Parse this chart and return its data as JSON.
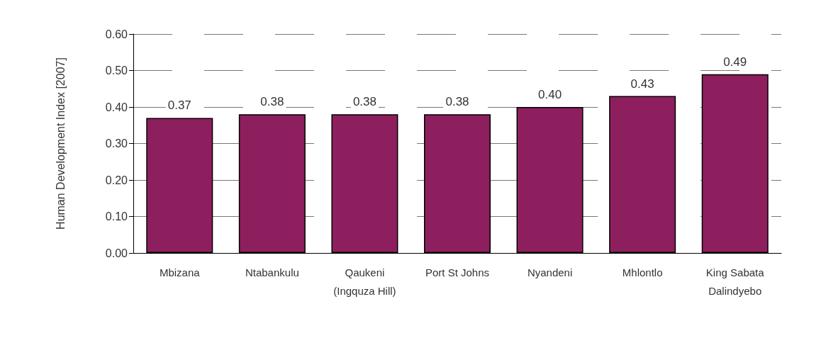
{
  "chart_data": {
    "type": "bar",
    "ylabel": "Human Development Index [2007]",
    "categories": [
      "Mbizana",
      "Ntabankulu",
      "Qaukeni\n(Ingquza Hill)",
      "Port St Johns",
      "Nyandeni",
      "Mhlontlo",
      "King Sabata\nDalindyebo"
    ],
    "values": [
      0.37,
      0.38,
      0.38,
      0.38,
      0.4,
      0.43,
      0.49
    ],
    "value_labels": [
      "0.37",
      "0.38",
      "0.38",
      "0.38",
      "0.40",
      "0.43",
      "0.49"
    ],
    "color": "#8e1f5e",
    "ylim": [
      0,
      0.6
    ],
    "yticks": [
      {
        "value": 0,
        "label": "0.00"
      },
      {
        "value": 0.1,
        "label": "0.10"
      },
      {
        "value": 0.2,
        "label": "0.20"
      },
      {
        "value": 0.3,
        "label": "0.30"
      },
      {
        "value": 0.4,
        "label": "0.40"
      },
      {
        "value": 0.5,
        "label": "0.50"
      },
      {
        "value": 0.6,
        "label": "0.60"
      }
    ],
    "grid": "y"
  }
}
